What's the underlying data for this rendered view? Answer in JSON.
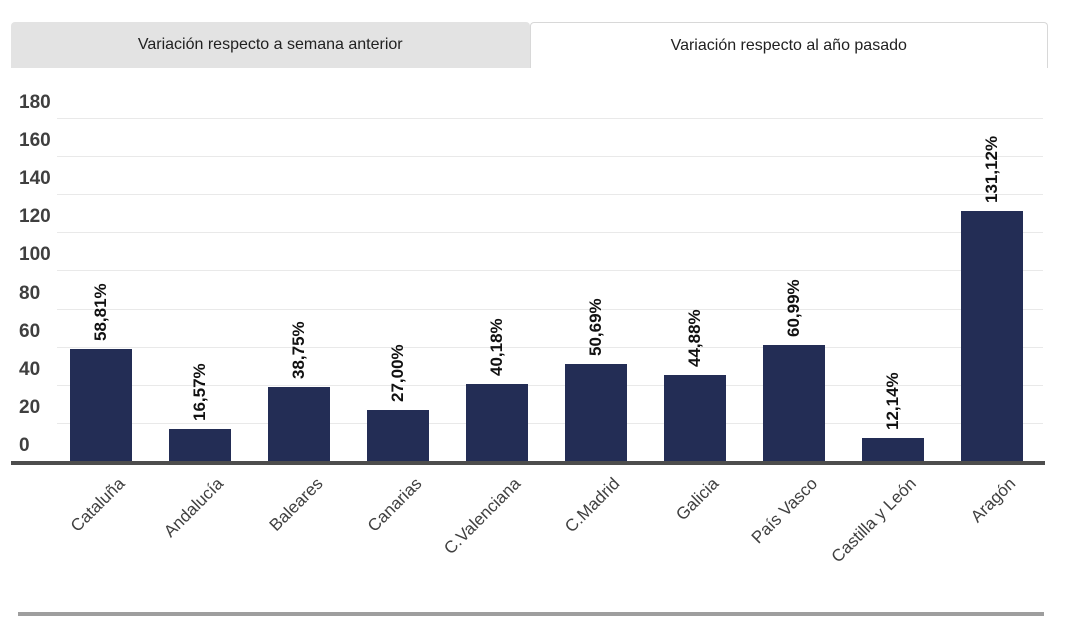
{
  "tabs": [
    {
      "label": "Variación respecto a semana anterior",
      "active": false
    },
    {
      "label": "Variación respecto al año pasado",
      "active": true
    }
  ],
  "chart_data": {
    "type": "bar",
    "title": "",
    "xlabel": "",
    "ylabel": "",
    "categories": [
      "Cataluña",
      "Andalucía",
      "Baleares",
      "Canarias",
      "C.Valenciana",
      "C.Madrid",
      "Galicia",
      "País Vasco",
      "Castilla y León",
      "Aragón"
    ],
    "values": [
      58.81,
      16.57,
      38.75,
      27.0,
      40.18,
      50.69,
      44.88,
      60.99,
      12.14,
      131.12
    ],
    "data_labels": [
      "58,81%",
      "16,57%",
      "38,75%",
      "27,00%",
      "40,18%",
      "50,69%",
      "44,88%",
      "60,99%",
      "12,14%",
      "131,12%"
    ],
    "ylim": [
      0,
      180
    ],
    "ytick_step": 20,
    "yticks": [
      0,
      20,
      40,
      60,
      80,
      100,
      120,
      140,
      160,
      180
    ],
    "grid": true,
    "legend": false,
    "data_label_rotation": -90,
    "xtick_rotation": -45
  },
  "colors": {
    "bar": "#232d55",
    "gridline": "#e9e9e9",
    "axis_line": "#4d4d4d",
    "divider": "#9e9e9e",
    "tab_inactive_bg": "#e3e3e3",
    "tab_active_border": "#d8d8d8",
    "tab_text": "#212121",
    "ytick_text": "#3f3f3f",
    "xtick_text": "#404040",
    "data_label_text": "#111111"
  }
}
